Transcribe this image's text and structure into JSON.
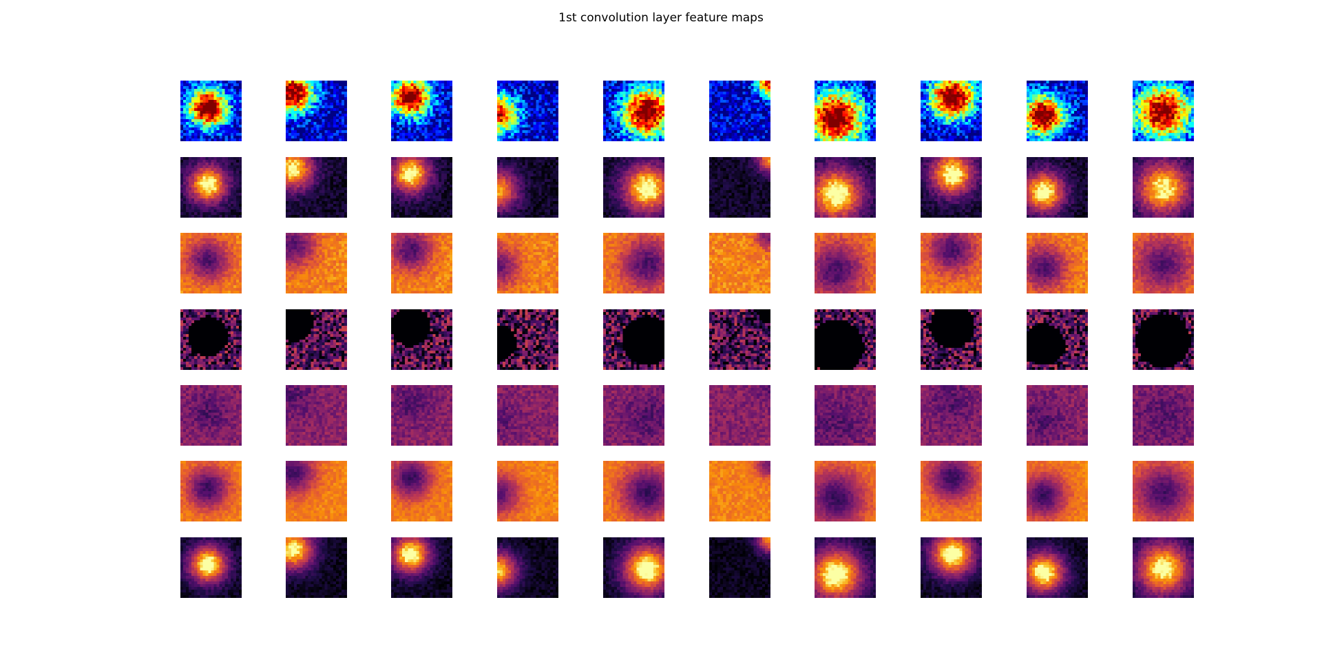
{
  "title": "1st convolution layer feature maps",
  "chart_data": {
    "type": "heatmap",
    "title": "1st convolution layer feature maps",
    "grid": {
      "rows": 7,
      "cols": 10
    },
    "axes_visible": false,
    "inputs": [
      {
        "sample": 1,
        "blob_center": [
          0.45,
          0.45
        ],
        "blob_radius": 0.3,
        "contrast": 1.0
      },
      {
        "sample": 2,
        "blob_center": [
          0.12,
          0.2
        ],
        "blob_radius": 0.32,
        "contrast": 0.95
      },
      {
        "sample": 3,
        "blob_center": [
          0.32,
          0.28
        ],
        "blob_radius": 0.3,
        "contrast": 1.0
      },
      {
        "sample": 4,
        "blob_center": [
          0.02,
          0.55
        ],
        "blob_radius": 0.3,
        "contrast": 0.85
      },
      {
        "sample": 5,
        "blob_center": [
          0.72,
          0.52
        ],
        "blob_radius": 0.38,
        "contrast": 1.0
      },
      {
        "sample": 6,
        "blob_center": [
          0.98,
          0.05
        ],
        "blob_radius": 0.2,
        "contrast": 0.75
      },
      {
        "sample": 7,
        "blob_center": [
          0.35,
          0.62
        ],
        "blob_radius": 0.42,
        "contrast": 1.0
      },
      {
        "sample": 8,
        "blob_center": [
          0.52,
          0.28
        ],
        "blob_radius": 0.34,
        "contrast": 1.0
      },
      {
        "sample": 9,
        "blob_center": [
          0.28,
          0.58
        ],
        "blob_radius": 0.32,
        "contrast": 1.0
      },
      {
        "sample": 10,
        "blob_center": [
          0.5,
          0.52
        ],
        "blob_radius": 0.42,
        "contrast": 0.95
      }
    ],
    "channels": [
      {
        "channel": 1,
        "colormap": "jet",
        "mode": "raw"
      },
      {
        "channel": 2,
        "colormap": "inferno",
        "mode": "smooth"
      },
      {
        "channel": 3,
        "colormap": "inferno",
        "mode": "inverted"
      },
      {
        "channel": 4,
        "colormap": "inferno",
        "mode": "clipped"
      },
      {
        "channel": 5,
        "colormap": "inferno",
        "mode": "flat"
      },
      {
        "channel": 6,
        "colormap": "inferno",
        "mode": "inverted-smooth"
      },
      {
        "channel": 7,
        "colormap": "inferno",
        "mode": "bright"
      }
    ]
  }
}
